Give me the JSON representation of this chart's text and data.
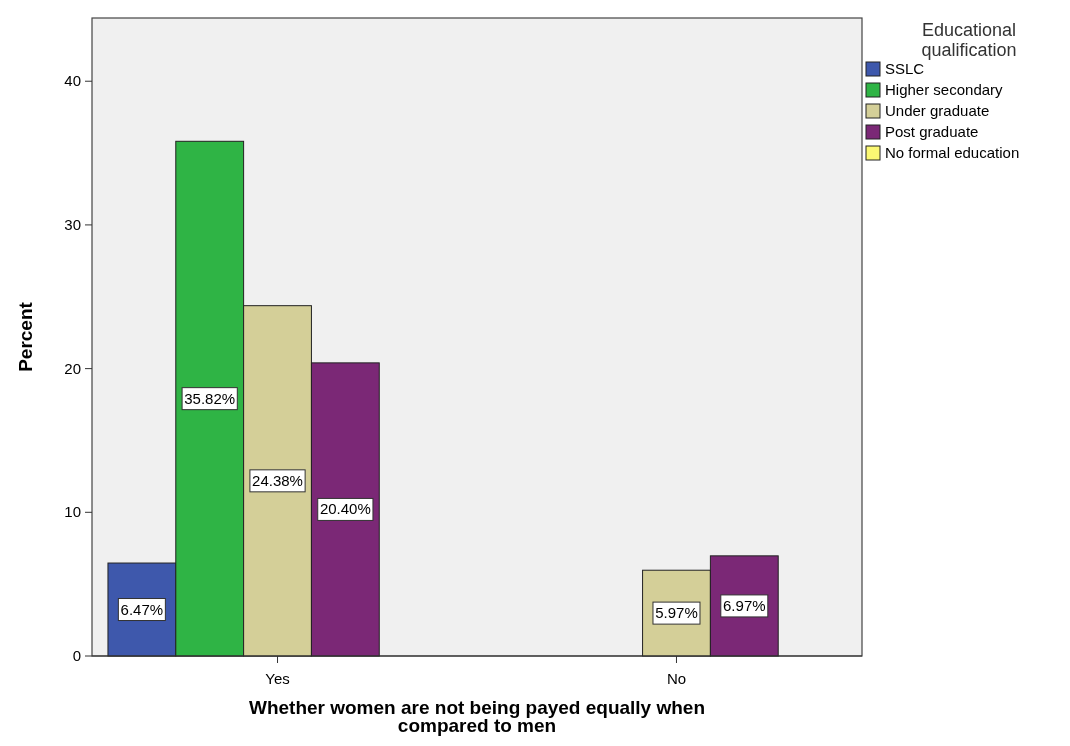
{
  "chart_data": {
    "type": "bar",
    "xlabel": "Whether women are not being payed equally when compared to men",
    "ylabel": "Percent",
    "legend_title": "Educational qualification",
    "categories": [
      "Yes",
      "No"
    ],
    "series": [
      {
        "name": "SSLC",
        "color": "#3e58ac",
        "values": [
          6.47,
          null
        ],
        "value_labels": [
          "6.47%",
          null
        ]
      },
      {
        "name": "Higher secondary",
        "color": "#2fb445",
        "values": [
          35.82,
          null
        ],
        "value_labels": [
          "35.82%",
          null
        ]
      },
      {
        "name": "Under graduate",
        "color": "#d4cf98",
        "values": [
          24.38,
          5.97
        ],
        "value_labels": [
          "24.38%",
          "5.97%"
        ]
      },
      {
        "name": "Post graduate",
        "color": "#7b2876",
        "values": [
          20.4,
          6.97
        ],
        "value_labels": [
          "20.40%",
          "6.97%"
        ]
      },
      {
        "name": "No formal education",
        "color": "#fbf873",
        "values": [
          null,
          null
        ]
      }
    ],
    "ylim": [
      0,
      44.4
    ],
    "yticks": [
      0,
      10,
      20,
      30,
      40
    ],
    "grid": false,
    "legend": "top right"
  }
}
